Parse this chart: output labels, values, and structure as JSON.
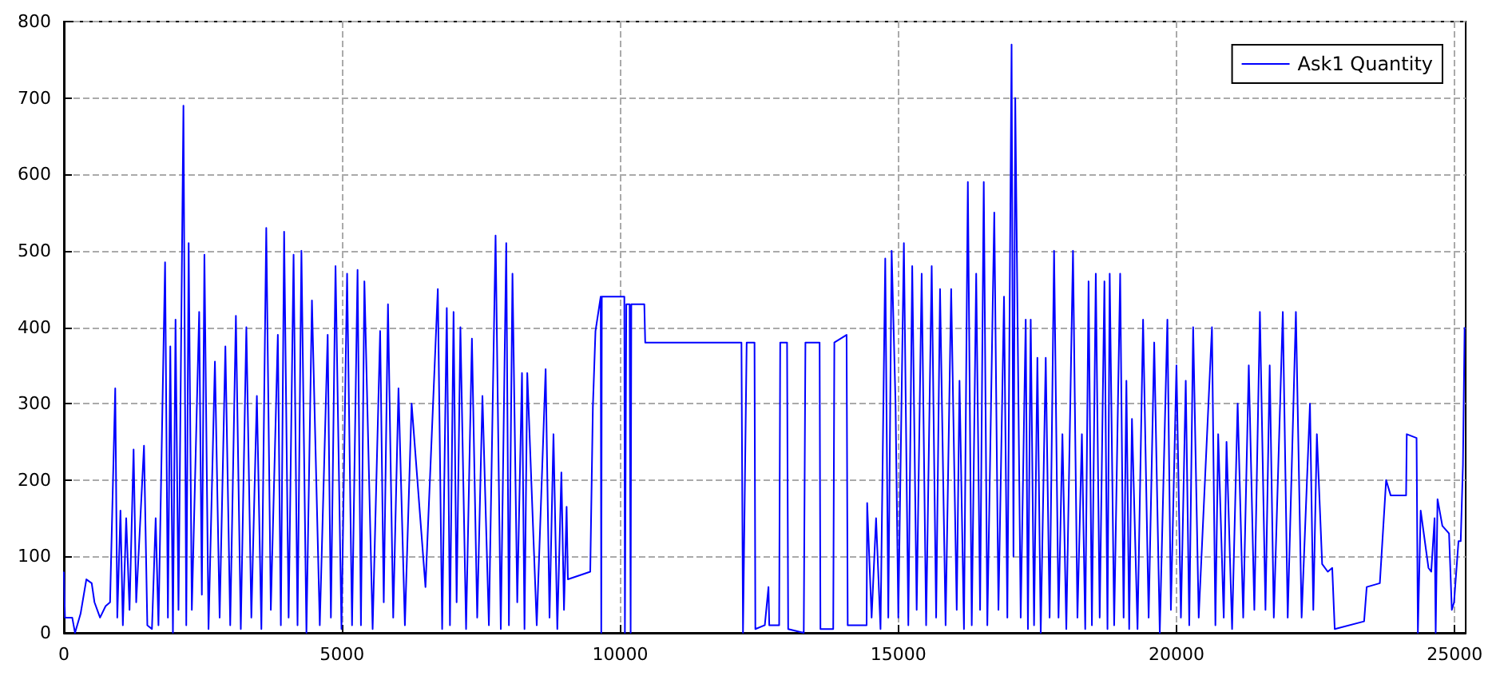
{
  "chart_data": {
    "type": "line",
    "x": [
      0,
      20,
      150,
      200,
      300,
      404,
      500,
      550,
      650,
      750,
      830,
      923,
      960,
      1017,
      1060,
      1120,
      1180,
      1253,
      1300,
      1440,
      1500,
      1583,
      1650,
      1700,
      1819,
      1870,
      1913,
      1960,
      2007,
      2060,
      2149,
      2200,
      2243,
      2300,
      2432,
      2480,
      2526,
      2600,
      2715,
      2800,
      2903,
      2990,
      3092,
      3180,
      3280,
      3370,
      3469,
      3550,
      3638,
      3720,
      3846,
      3900,
      3959,
      4040,
      4129,
      4200,
      4270,
      4360,
      4459,
      4600,
      4742,
      4800,
      4883,
      4990,
      5091,
      5180,
      5279,
      5340,
      5402,
      5550,
      5685,
      5750,
      5826,
      5920,
      6015,
      6130,
      6251,
      6500,
      6722,
      6800,
      6883,
      6940,
      7005,
      7060,
      7128,
      7230,
      7335,
      7430,
      7524,
      7640,
      7760,
      7854,
      7952,
      8000,
      8064,
      8150,
      8235,
      8280,
      8330,
      8500,
      8660,
      8730,
      8801,
      8870,
      8943,
      8990,
      9037,
      9060,
      9462,
      9509,
      9556,
      9650,
      9660,
      9670,
      10075,
      10085,
      10110,
      10170,
      10188,
      10200,
      10434,
      10450,
      12180,
      12208,
      12274,
      12415,
      12430,
      12600,
      12666,
      12680,
      12858,
      12877,
      13000,
      13020,
      13300,
      13330,
      13585,
      13600,
      13830,
      13850,
      14070,
      14090,
      14430,
      14440,
      14520,
      14600,
      14680,
      14765,
      14820,
      14880,
      14950,
      15000,
      15100,
      15180,
      15250,
      15330,
      15420,
      15500,
      15600,
      15680,
      15750,
      15850,
      15950,
      16050,
      16100,
      16180,
      16250,
      16320,
      16400,
      16470,
      16536,
      16600,
      16725,
      16800,
      16900,
      16960,
      17036,
      17070,
      17102,
      17200,
      17290,
      17330,
      17380,
      17440,
      17500,
      17560,
      17650,
      17720,
      17800,
      17880,
      17950,
      18020,
      18140,
      18220,
      18300,
      18360,
      18420,
      18480,
      18550,
      18620,
      18705,
      18760,
      18800,
      18880,
      18988,
      19050,
      19100,
      19150,
      19200,
      19300,
      19400,
      19500,
      19600,
      19700,
      19837,
      19900,
      20000,
      20080,
      20167,
      20230,
      20300,
      20400,
      20638,
      20700,
      20750,
      20850,
      20900,
      21000,
      21100,
      21200,
      21300,
      21400,
      21500,
      21600,
      21676,
      21750,
      21912,
      22000,
      22147,
      22250,
      22400,
      22460,
      22524,
      22619,
      22720,
      22800,
      22845,
      23373,
      23420,
      23656,
      23769,
      23850,
      24128,
      24140,
      24316,
      24340,
      24390,
      24530,
      24580,
      24640,
      24660,
      24693,
      24780,
      24900,
      24950,
      24990,
      25070,
      25110,
      25150,
      25180
    ],
    "series": [
      {
        "name": "Ask1 Quantity",
        "color": "#0000ff",
        "values": [
          80,
          20,
          20,
          0,
          25,
          70,
          65,
          40,
          20,
          35,
          40,
          320,
          20,
          160,
          10,
          150,
          30,
          240,
          40,
          245,
          10,
          5,
          150,
          10,
          485,
          20,
          375,
          0,
          410,
          30,
          690,
          10,
          510,
          30,
          420,
          50,
          495,
          5,
          355,
          20,
          375,
          10,
          415,
          5,
          400,
          20,
          310,
          5,
          530,
          30,
          390,
          10,
          525,
          20,
          495,
          10,
          500,
          0,
          435,
          10,
          390,
          20,
          480,
          5,
          470,
          10,
          475,
          10,
          460,
          5,
          395,
          40,
          430,
          20,
          320,
          10,
          300,
          60,
          450,
          5,
          425,
          10,
          420,
          40,
          400,
          5,
          385,
          20,
          310,
          10,
          520,
          5,
          510,
          10,
          470,
          40,
          340,
          5,
          340,
          10,
          345,
          20,
          260,
          5,
          210,
          30,
          165,
          70,
          80,
          295,
          395,
          440,
          0,
          440,
          440,
          0,
          430,
          430,
          0,
          430,
          430,
          380,
          380,
          0,
          380,
          380,
          5,
          10,
          60,
          10,
          10,
          380,
          380,
          5,
          0,
          380,
          380,
          5,
          5,
          380,
          390,
          10,
          10,
          170,
          20,
          150,
          5,
          490,
          20,
          500,
          300,
          20,
          510,
          10,
          480,
          30,
          470,
          10,
          480,
          20,
          450,
          10,
          450,
          30,
          330,
          5,
          590,
          10,
          470,
          30,
          590,
          10,
          550,
          30,
          440,
          20,
          770,
          100,
          700,
          20,
          410,
          5,
          410,
          10,
          360,
          0,
          360,
          20,
          500,
          20,
          260,
          5,
          500,
          20,
          260,
          5,
          460,
          10,
          470,
          20,
          460,
          5,
          470,
          10,
          470,
          20,
          330,
          5,
          280,
          5,
          410,
          20,
          380,
          0,
          410,
          30,
          350,
          20,
          330,
          10,
          400,
          20,
          400,
          10,
          260,
          20,
          250,
          5,
          300,
          20,
          350,
          30,
          420,
          30,
          350,
          20,
          420,
          20,
          420,
          20,
          300,
          30,
          260,
          90,
          80,
          85,
          5,
          15,
          60,
          65,
          200,
          180,
          180,
          260,
          255,
          0,
          160,
          85,
          80,
          150,
          0,
          175,
          140,
          130,
          30,
          40,
          120,
          120,
          220,
          400
        ]
      }
    ],
    "xlim": [
      0,
      25200
    ],
    "xticks": [
      0,
      5000,
      10000,
      15000,
      20000,
      25000
    ],
    "ylim": [
      0,
      800
    ],
    "yticks": [
      0,
      100,
      200,
      300,
      400,
      500,
      600,
      700,
      800
    ],
    "grid": true,
    "legend": "top right"
  }
}
